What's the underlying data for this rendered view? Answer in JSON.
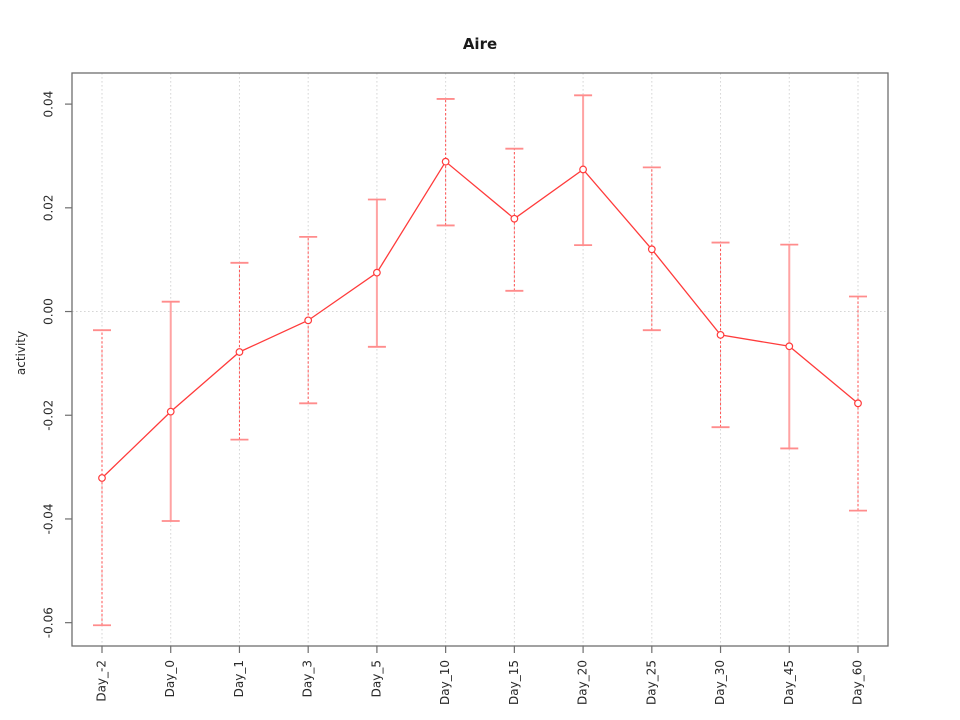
{
  "chart_data": {
    "type": "line",
    "title": "Aire",
    "ylabel": "activity",
    "xlabel": "",
    "categories": [
      "Day_-2",
      "Day_0",
      "Day_1",
      "Day_3",
      "Day_5",
      "Day_10",
      "Day_15",
      "Day_20",
      "Day_25",
      "Day_30",
      "Day_45",
      "Day_60"
    ],
    "values": [
      -0.0321,
      -0.0193,
      -0.0078,
      -0.0017,
      0.0075,
      0.0289,
      0.0179,
      0.0274,
      0.012,
      -0.0045,
      -0.0067,
      -0.0177
    ],
    "upper": [
      -0.0036,
      0.0019,
      0.0094,
      0.0144,
      0.0216,
      0.041,
      0.0314,
      0.0417,
      0.0278,
      0.0133,
      0.0129,
      0.0029
    ],
    "lower": [
      -0.0605,
      -0.0404,
      -0.0247,
      -0.0177,
      -0.0068,
      0.0166,
      0.004,
      0.0128,
      -0.0036,
      -0.0223,
      -0.0264,
      -0.0384
    ],
    "yticks": [
      0.04,
      0.02,
      0,
      -0.02,
      -0.04,
      -0.06
    ],
    "ytick_labels": [
      "0.04",
      "0.02",
      "0.00",
      "-0.02",
      "-0.04",
      "-0.06"
    ],
    "ylim": [
      -0.0645,
      0.046
    ],
    "grid": "dotted vertical line at every category, dotted horizontal line at y=0",
    "legend_position": "none",
    "stem_styles": [
      "dashed",
      "solid",
      "dashed",
      "dashed",
      "solid",
      "dashed",
      "dashed",
      "solid",
      "dashed",
      "dashed",
      "solid",
      "dashed"
    ],
    "colors": {
      "series": "#ff3b3b",
      "stem_dashed": "#ff5252",
      "stem_solid": "#ffa3a3",
      "cap": "#ff8c8c",
      "grid": "#d6d6d6",
      "axis": "#6e6e6e",
      "text": "#2a2a2a"
    }
  }
}
